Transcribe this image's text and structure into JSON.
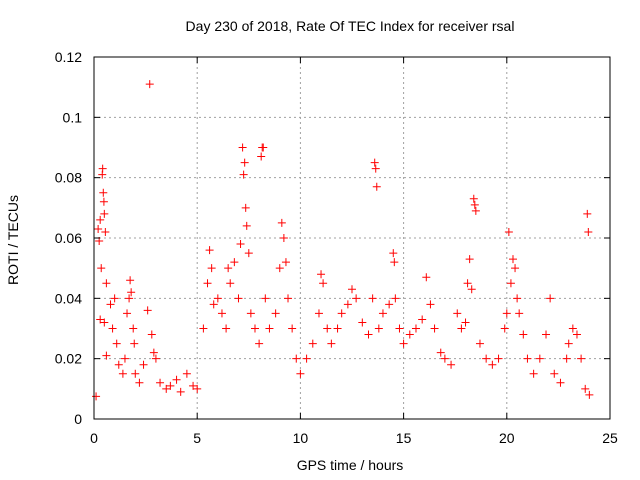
{
  "chart_data": {
    "type": "scatter",
    "title": "Day 230 of 2018, Rate Of TEC Index for receiver rsal",
    "xlabel": "GPS time / hours",
    "ylabel": "ROTI / TECUs",
    "xlim": [
      0,
      25
    ],
    "ylim": [
      0,
      0.12
    ],
    "xticks": [
      0,
      5,
      10,
      15,
      20,
      25
    ],
    "yticks": [
      0,
      0.02,
      0.04,
      0.06,
      0.08,
      0.1,
      0.12
    ],
    "xtick_labels": [
      "0",
      "5",
      "10",
      "15",
      "20",
      "25"
    ],
    "ytick_labels": [
      "0",
      "0.02",
      "0.04",
      "0.06",
      "0.08",
      "0.1",
      "0.12"
    ],
    "grid": true,
    "marker": "plus",
    "color": "#ff0000",
    "series": [
      {
        "name": "ROTI",
        "points": [
          [
            0.1,
            0.0075
          ],
          [
            0.2,
            0.063
          ],
          [
            0.25,
            0.059
          ],
          [
            0.3,
            0.066
          ],
          [
            0.35,
            0.05
          ],
          [
            0.4,
            0.081
          ],
          [
            0.42,
            0.083
          ],
          [
            0.45,
            0.075
          ],
          [
            0.48,
            0.072
          ],
          [
            0.5,
            0.068
          ],
          [
            0.55,
            0.062
          ],
          [
            0.6,
            0.045
          ],
          [
            0.3,
            0.033
          ],
          [
            0.5,
            0.032
          ],
          [
            0.6,
            0.021
          ],
          [
            0.8,
            0.038
          ],
          [
            0.9,
            0.03
          ],
          [
            1.0,
            0.04
          ],
          [
            1.1,
            0.025
          ],
          [
            1.2,
            0.018
          ],
          [
            1.4,
            0.015
          ],
          [
            1.5,
            0.02
          ],
          [
            1.6,
            0.035
          ],
          [
            1.7,
            0.04
          ],
          [
            1.75,
            0.046
          ],
          [
            1.8,
            0.042
          ],
          [
            1.9,
            0.03
          ],
          [
            1.95,
            0.025
          ],
          [
            2.0,
            0.015
          ],
          [
            2.2,
            0.012
          ],
          [
            2.4,
            0.018
          ],
          [
            2.6,
            0.036
          ],
          [
            2.7,
            0.111
          ],
          [
            2.8,
            0.028
          ],
          [
            2.9,
            0.022
          ],
          [
            3.0,
            0.02
          ],
          [
            3.2,
            0.012
          ],
          [
            3.5,
            0.01
          ],
          [
            3.7,
            0.011
          ],
          [
            4.0,
            0.013
          ],
          [
            4.2,
            0.009
          ],
          [
            4.5,
            0.015
          ],
          [
            4.8,
            0.011
          ],
          [
            5.0,
            0.01
          ],
          [
            5.3,
            0.03
          ],
          [
            5.5,
            0.045
          ],
          [
            5.6,
            0.056
          ],
          [
            5.7,
            0.05
          ],
          [
            5.8,
            0.038
          ],
          [
            6.0,
            0.04
          ],
          [
            6.2,
            0.035
          ],
          [
            6.4,
            0.03
          ],
          [
            6.5,
            0.05
          ],
          [
            6.6,
            0.045
          ],
          [
            6.8,
            0.052
          ],
          [
            7.0,
            0.04
          ],
          [
            7.1,
            0.058
          ],
          [
            7.2,
            0.09
          ],
          [
            7.25,
            0.081
          ],
          [
            7.3,
            0.085
          ],
          [
            7.35,
            0.07
          ],
          [
            7.4,
            0.064
          ],
          [
            7.5,
            0.055
          ],
          [
            7.6,
            0.035
          ],
          [
            7.8,
            0.03
          ],
          [
            8.0,
            0.025
          ],
          [
            8.1,
            0.087
          ],
          [
            8.15,
            0.09
          ],
          [
            8.2,
            0.09
          ],
          [
            8.3,
            0.04
          ],
          [
            8.5,
            0.03
          ],
          [
            8.8,
            0.035
          ],
          [
            9.0,
            0.05
          ],
          [
            9.1,
            0.065
          ],
          [
            9.2,
            0.06
          ],
          [
            9.3,
            0.052
          ],
          [
            9.4,
            0.04
          ],
          [
            9.6,
            0.03
          ],
          [
            9.8,
            0.02
          ],
          [
            10.0,
            0.015
          ],
          [
            10.3,
            0.02
          ],
          [
            10.6,
            0.025
          ],
          [
            10.9,
            0.035
          ],
          [
            11.0,
            0.048
          ],
          [
            11.1,
            0.045
          ],
          [
            11.3,
            0.03
          ],
          [
            11.5,
            0.025
          ],
          [
            11.8,
            0.03
          ],
          [
            12.0,
            0.035
          ],
          [
            12.3,
            0.038
          ],
          [
            12.5,
            0.043
          ],
          [
            12.7,
            0.04
          ],
          [
            13.0,
            0.032
          ],
          [
            13.3,
            0.028
          ],
          [
            13.5,
            0.04
          ],
          [
            13.6,
            0.085
          ],
          [
            13.65,
            0.083
          ],
          [
            13.7,
            0.077
          ],
          [
            13.8,
            0.03
          ],
          [
            14.0,
            0.035
          ],
          [
            14.3,
            0.038
          ],
          [
            14.5,
            0.055
          ],
          [
            14.55,
            0.052
          ],
          [
            14.6,
            0.04
          ],
          [
            14.8,
            0.03
          ],
          [
            15.0,
            0.025
          ],
          [
            15.3,
            0.028
          ],
          [
            15.6,
            0.03
          ],
          [
            15.9,
            0.033
          ],
          [
            16.1,
            0.047
          ],
          [
            16.3,
            0.038
          ],
          [
            16.5,
            0.03
          ],
          [
            16.8,
            0.022
          ],
          [
            17.0,
            0.02
          ],
          [
            17.3,
            0.018
          ],
          [
            17.6,
            0.035
          ],
          [
            17.8,
            0.03
          ],
          [
            18.0,
            0.032
          ],
          [
            18.1,
            0.045
          ],
          [
            18.2,
            0.053
          ],
          [
            18.3,
            0.043
          ],
          [
            18.4,
            0.073
          ],
          [
            18.45,
            0.071
          ],
          [
            18.5,
            0.069
          ],
          [
            18.7,
            0.025
          ],
          [
            19.0,
            0.02
          ],
          [
            19.3,
            0.018
          ],
          [
            19.6,
            0.02
          ],
          [
            19.9,
            0.03
          ],
          [
            20.0,
            0.035
          ],
          [
            20.1,
            0.062
          ],
          [
            20.2,
            0.045
          ],
          [
            20.3,
            0.053
          ],
          [
            20.4,
            0.05
          ],
          [
            20.5,
            0.04
          ],
          [
            20.6,
            0.035
          ],
          [
            20.8,
            0.028
          ],
          [
            21.0,
            0.02
          ],
          [
            21.3,
            0.015
          ],
          [
            21.6,
            0.02
          ],
          [
            21.9,
            0.028
          ],
          [
            22.1,
            0.04
          ],
          [
            22.3,
            0.015
          ],
          [
            22.6,
            0.012
          ],
          [
            22.9,
            0.02
          ],
          [
            23.0,
            0.025
          ],
          [
            23.2,
            0.03
          ],
          [
            23.4,
            0.028
          ],
          [
            23.6,
            0.02
          ],
          [
            23.8,
            0.01
          ],
          [
            23.9,
            0.068
          ],
          [
            23.95,
            0.062
          ],
          [
            24.0,
            0.008
          ]
        ]
      }
    ]
  }
}
